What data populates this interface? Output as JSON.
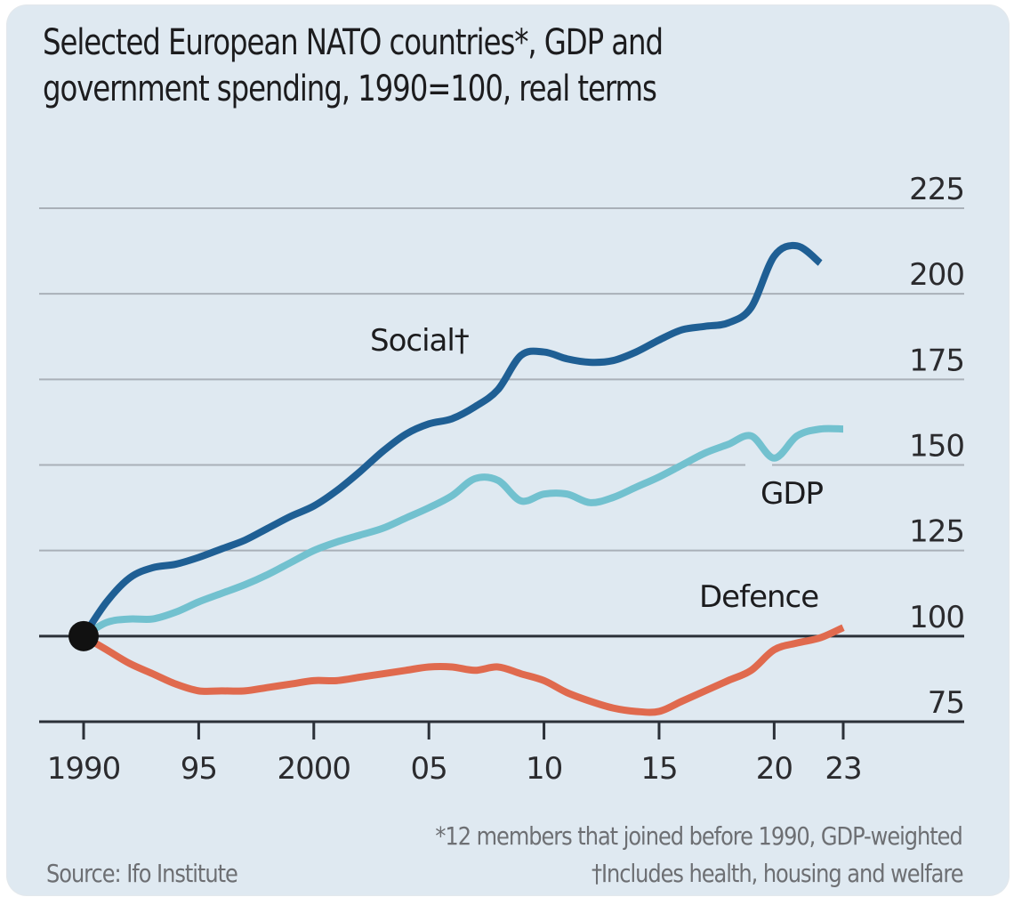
{
  "chart_data": {
    "type": "line",
    "title": "Selected European NATO countries*, GDP and government spending, 1990=100, real terms",
    "title_lines": [
      "Selected European NATO countries*, GDP and",
      "government spending, 1990=100, real terms"
    ],
    "xlabel": "",
    "ylabel": "",
    "xlim": [
      1990,
      2023
    ],
    "ylim": [
      75,
      225
    ],
    "grid": true,
    "y_axis_side": "right",
    "x_ticks": [
      1990,
      1995,
      2000,
      2005,
      2010,
      2015,
      2020,
      2023
    ],
    "x_tick_labels": [
      "1990",
      "95",
      "2000",
      "05",
      "10",
      "15",
      "20",
      "23"
    ],
    "y_ticks": [
      75,
      100,
      125,
      150,
      175,
      200,
      225
    ],
    "y_tick_labels": [
      "75",
      "100",
      "125",
      "150",
      "175",
      "200",
      "225"
    ],
    "baseline": 100,
    "origin_marker": {
      "x": 1990,
      "y": 100,
      "color": "#111111"
    },
    "series": [
      {
        "name": "Social",
        "label": "Social†",
        "color": "#1f5f94",
        "x": [
          1990,
          1991,
          1992,
          1993,
          1994,
          1995,
          1996,
          1997,
          1998,
          1999,
          2000,
          2001,
          2002,
          2003,
          2004,
          2005,
          2006,
          2007,
          2008,
          2009,
          2010,
          2011,
          2012,
          2013,
          2014,
          2015,
          2016,
          2017,
          2018,
          2019,
          2020,
          2021,
          2022
        ],
        "values": [
          100,
          110,
          117,
          120,
          121,
          123,
          125.5,
          128,
          131.5,
          135,
          138,
          142.5,
          148,
          154,
          159,
          162,
          163.5,
          167,
          172,
          182,
          183,
          181,
          180,
          180.5,
          183,
          186.5,
          189.5,
          190.5,
          191.5,
          196,
          211,
          214,
          209
        ]
      },
      {
        "name": "GDP",
        "label": "GDP",
        "color": "#72c1cf",
        "x": [
          1990,
          1991,
          1992,
          1993,
          1994,
          1995,
          1996,
          1997,
          1998,
          1999,
          2000,
          2001,
          2002,
          2003,
          2004,
          2005,
          2006,
          2007,
          2008,
          2009,
          2010,
          2011,
          2012,
          2013,
          2014,
          2015,
          2016,
          2017,
          2018,
          2019,
          2020,
          2021,
          2022,
          2023
        ],
        "values": [
          100,
          104,
          105,
          105,
          107,
          110,
          112.5,
          115,
          118,
          121.5,
          125,
          127.5,
          129.5,
          131.5,
          134.5,
          137.5,
          141,
          146,
          145.5,
          139.5,
          141.5,
          141.5,
          139,
          140.5,
          143.5,
          146.5,
          150,
          153.5,
          156,
          158.5,
          152,
          158.5,
          160.5,
          160.5
        ]
      },
      {
        "name": "Defence",
        "label": "Defence",
        "color": "#e06a4e",
        "x": [
          1990,
          1991,
          1992,
          1993,
          1994,
          1995,
          1996,
          1997,
          1998,
          1999,
          2000,
          2001,
          2002,
          2003,
          2004,
          2005,
          2006,
          2007,
          2008,
          2009,
          2010,
          2011,
          2012,
          2013,
          2014,
          2015,
          2016,
          2017,
          2018,
          2019,
          2020,
          2021,
          2022,
          2023
        ],
        "values": [
          100,
          96,
          92,
          89,
          86,
          84,
          84,
          84,
          85,
          86,
          87,
          87,
          88,
          89,
          90,
          91,
          91,
          90,
          91,
          89,
          87,
          83.5,
          81,
          79,
          78,
          78,
          81,
          84,
          87,
          90,
          96,
          98,
          99.5,
          102.5
        ]
      }
    ],
    "series_labels_placement": {
      "Social": "above-line mid-left",
      "GDP": "below-line right",
      "Defence": "above-line right"
    }
  },
  "footnotes": {
    "members": "*12 members that joined before 1990, GDP-weighted",
    "social_def": "†Includes health, housing and welfare",
    "source": "Source: Ifo Institute"
  },
  "colors": {
    "background": "#dfe9f1",
    "gridline": "#a9b0b8",
    "axis": "#2b3038",
    "text": "#1c1c1e",
    "footnote": "#6d6f73"
  }
}
